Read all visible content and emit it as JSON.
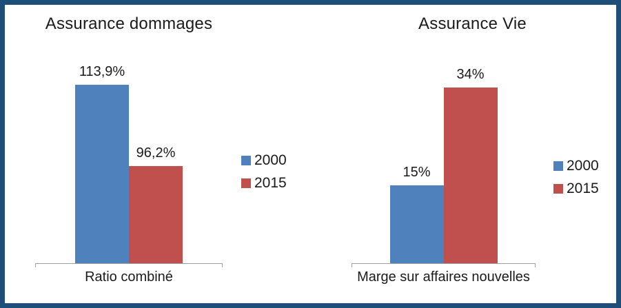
{
  "page": {
    "frame_color": "#1F4E79",
    "background": "#FFFFFF",
    "text_color": "#1A1A1A",
    "axis_color": "#9E9E9E"
  },
  "chart_data": [
    {
      "type": "bar",
      "title": "Assurance dommages",
      "categories": [
        "Ratio combiné"
      ],
      "series": [
        {
          "name": "2000",
          "color": "#4F81BD",
          "values": [
            113.9
          ],
          "label": "113,9%"
        },
        {
          "name": "2015",
          "color": "#C0504D",
          "values": [
            96.2
          ],
          "label": "96,2%"
        }
      ],
      "ylim": [
        75,
        120
      ],
      "grid": false,
      "value_axis_visible": false,
      "legend_position": "right",
      "xlabel": "",
      "ylabel": ""
    },
    {
      "type": "bar",
      "title": "Assurance Vie",
      "categories": [
        "Marge sur affaires nouvelles"
      ],
      "series": [
        {
          "name": "2000",
          "color": "#4F81BD",
          "values": [
            15
          ],
          "label": "15%"
        },
        {
          "name": "2015",
          "color": "#C0504D",
          "values": [
            34
          ],
          "label": "34%"
        }
      ],
      "ylim": [
        0,
        40
      ],
      "grid": false,
      "value_axis_visible": false,
      "legend_position": "right",
      "xlabel": "",
      "ylabel": ""
    }
  ]
}
